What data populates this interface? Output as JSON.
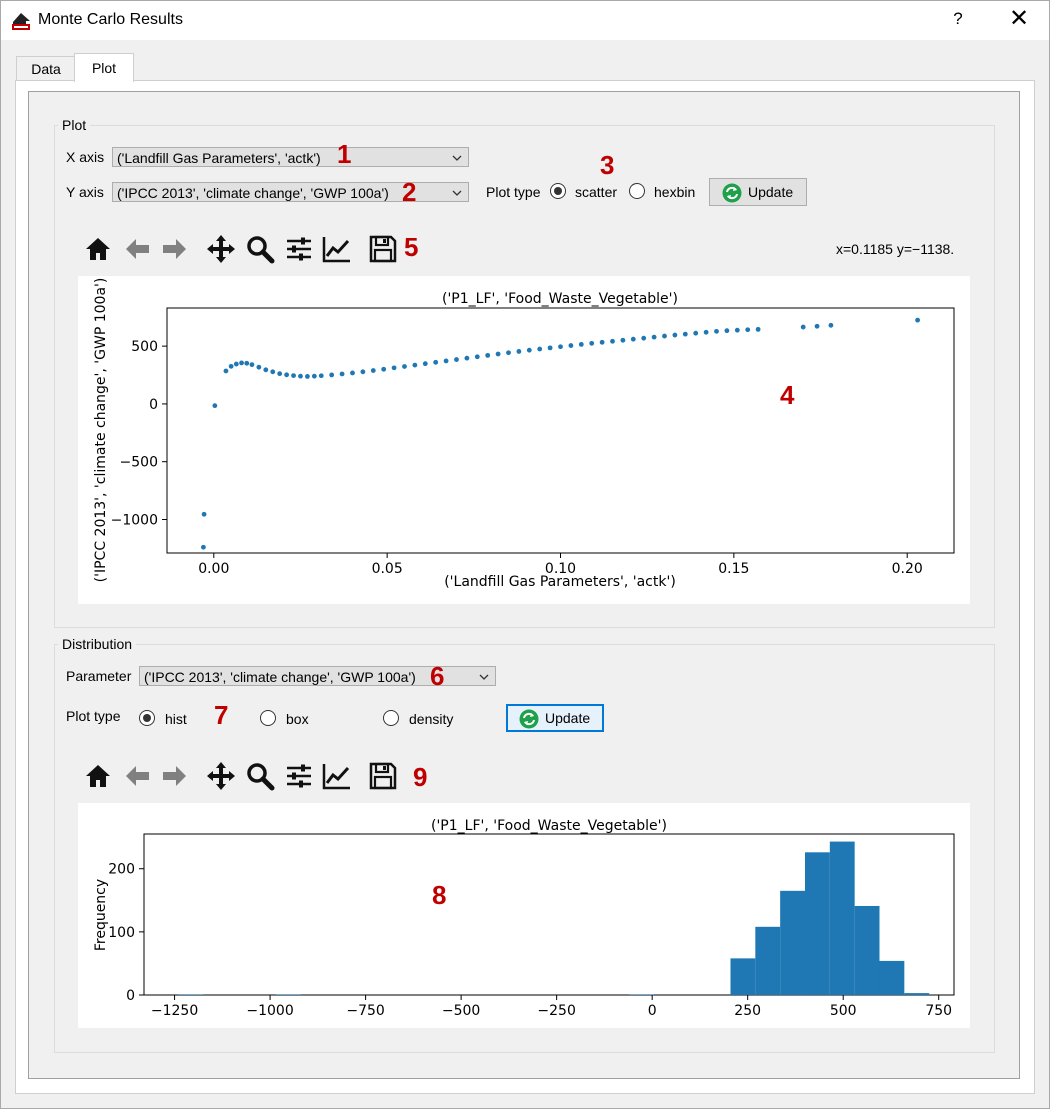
{
  "window": {
    "title": "Monte Carlo Results",
    "help": "?",
    "close": "✕"
  },
  "tabs": [
    {
      "label": "Data"
    },
    {
      "label": "Plot"
    }
  ],
  "plot_group": {
    "title": "Plot",
    "x_axis_label": "X axis",
    "x_axis_value": "('Landfill Gas Parameters', 'actk')",
    "y_axis_label": "Y axis",
    "y_axis_value": "('IPCC 2013', 'climate change', 'GWP 100a')",
    "plot_type_label": "Plot type",
    "options": [
      "scatter",
      "hexbin"
    ],
    "selected": "scatter",
    "update_label": "Update",
    "coord_readout": "x=0.1185 y=−1138."
  },
  "distribution_group": {
    "title": "Distribution",
    "parameter_label": "Parameter",
    "parameter_value": "('IPCC 2013', 'climate change', 'GWP 100a')",
    "plot_type_label": "Plot type",
    "options": [
      "hist",
      "box",
      "density"
    ],
    "selected": "hist",
    "update_label": "Update"
  },
  "annotations": [
    "1",
    "2",
    "3",
    "4",
    "5",
    "6",
    "7",
    "8",
    "9"
  ],
  "toolbar_icons": [
    "home-icon",
    "back-arrow-icon",
    "forward-arrow-icon",
    "pan-icon",
    "zoom-icon",
    "configure-subplots-icon",
    "edit-axis-icon",
    "save-icon"
  ],
  "chart_data": [
    {
      "type": "scatter",
      "title": "('P1_LF', 'Food_Waste_Vegetable')",
      "xlabel": "('Landfill Gas Parameters', 'actk')",
      "ylabel": "('IPCC 2013', 'climate change', 'GWP 100a')",
      "xlim": [
        -0.0135,
        0.2135
      ],
      "ylim": [
        -1290,
        830
      ],
      "xticks": [
        0.0,
        0.05,
        0.1,
        0.15,
        0.2
      ],
      "xtick_labels": [
        "0.00",
        "0.05",
        "0.10",
        "0.15",
        "0.20"
      ],
      "yticks": [
        -1000,
        -500,
        0,
        500
      ],
      "ytick_labels": [
        "−1000",
        "−500",
        "0",
        "500"
      ],
      "color": "#1f77b4",
      "points": [
        [
          -0.003,
          -1240
        ],
        [
          -0.0028,
          -955
        ],
        [
          0.0003,
          -15
        ],
        [
          0.0035,
          285
        ],
        [
          0.005,
          325
        ],
        [
          0.0065,
          345
        ],
        [
          0.008,
          355
        ],
        [
          0.0095,
          352
        ],
        [
          0.011,
          340
        ],
        [
          0.013,
          318
        ],
        [
          0.015,
          295
        ],
        [
          0.017,
          278
        ],
        [
          0.019,
          262
        ],
        [
          0.021,
          252
        ],
        [
          0.023,
          245
        ],
        [
          0.025,
          240
        ],
        [
          0.027,
          238
        ],
        [
          0.029,
          240
        ],
        [
          0.031,
          244
        ],
        [
          0.034,
          251
        ],
        [
          0.037,
          259
        ],
        [
          0.04,
          268
        ],
        [
          0.043,
          278
        ],
        [
          0.046,
          289
        ],
        [
          0.049,
          300
        ],
        [
          0.052,
          312
        ],
        [
          0.055,
          324
        ],
        [
          0.058,
          336
        ],
        [
          0.061,
          348
        ],
        [
          0.064,
          360
        ],
        [
          0.067,
          372
        ],
        [
          0.07,
          384
        ],
        [
          0.073,
          396
        ],
        [
          0.076,
          408
        ],
        [
          0.079,
          420
        ],
        [
          0.082,
          432
        ],
        [
          0.085,
          443
        ],
        [
          0.088,
          454
        ],
        [
          0.091,
          465
        ],
        [
          0.094,
          475
        ],
        [
          0.097,
          485
        ],
        [
          0.1,
          495
        ],
        [
          0.103,
          505
        ],
        [
          0.106,
          515
        ],
        [
          0.109,
          524
        ],
        [
          0.112,
          533
        ],
        [
          0.115,
          542
        ],
        [
          0.118,
          551
        ],
        [
          0.121,
          560
        ],
        [
          0.124,
          569
        ],
        [
          0.127,
          578
        ],
        [
          0.13,
          587
        ],
        [
          0.133,
          596
        ],
        [
          0.136,
          604
        ],
        [
          0.139,
          612
        ],
        [
          0.142,
          620
        ],
        [
          0.145,
          628
        ],
        [
          0.148,
          634
        ],
        [
          0.151,
          638
        ],
        [
          0.154,
          642
        ],
        [
          0.157,
          645
        ],
        [
          0.17,
          665
        ],
        [
          0.174,
          672
        ],
        [
          0.178,
          680
        ],
        [
          0.203,
          725
        ]
      ]
    },
    {
      "type": "bar",
      "title": "('P1_LF', 'Food_Waste_Vegetable')",
      "xlabel": "",
      "ylabel": "Frequency",
      "xlim": [
        -1330,
        790
      ],
      "ylim": [
        0,
        255
      ],
      "xticks": [
        -1250,
        -1000,
        -750,
        -500,
        -250,
        0,
        250,
        500,
        750
      ],
      "xtick_labels": [
        "−1250",
        "−1000",
        "−750",
        "−500",
        "−250",
        "0",
        "250",
        "500",
        "750"
      ],
      "yticks": [
        0,
        100,
        200
      ],
      "ytick_labels": [
        "0",
        "100",
        "200"
      ],
      "color": "#1f77b4",
      "bins": [
        {
          "x0": -1240,
          "x1": -1175,
          "value": 1
        },
        {
          "x0": -985,
          "x1": -920,
          "value": 1
        },
        {
          "x0": -60,
          "x1": 5,
          "value": 1
        },
        {
          "x0": 205,
          "x1": 270,
          "value": 58
        },
        {
          "x0": 270,
          "x1": 335,
          "value": 108
        },
        {
          "x0": 335,
          "x1": 400,
          "value": 165
        },
        {
          "x0": 400,
          "x1": 465,
          "value": 226
        },
        {
          "x0": 465,
          "x1": 530,
          "value": 243
        },
        {
          "x0": 530,
          "x1": 595,
          "value": 141
        },
        {
          "x0": 595,
          "x1": 660,
          "value": 54
        },
        {
          "x0": 660,
          "x1": 725,
          "value": 3
        }
      ]
    }
  ]
}
